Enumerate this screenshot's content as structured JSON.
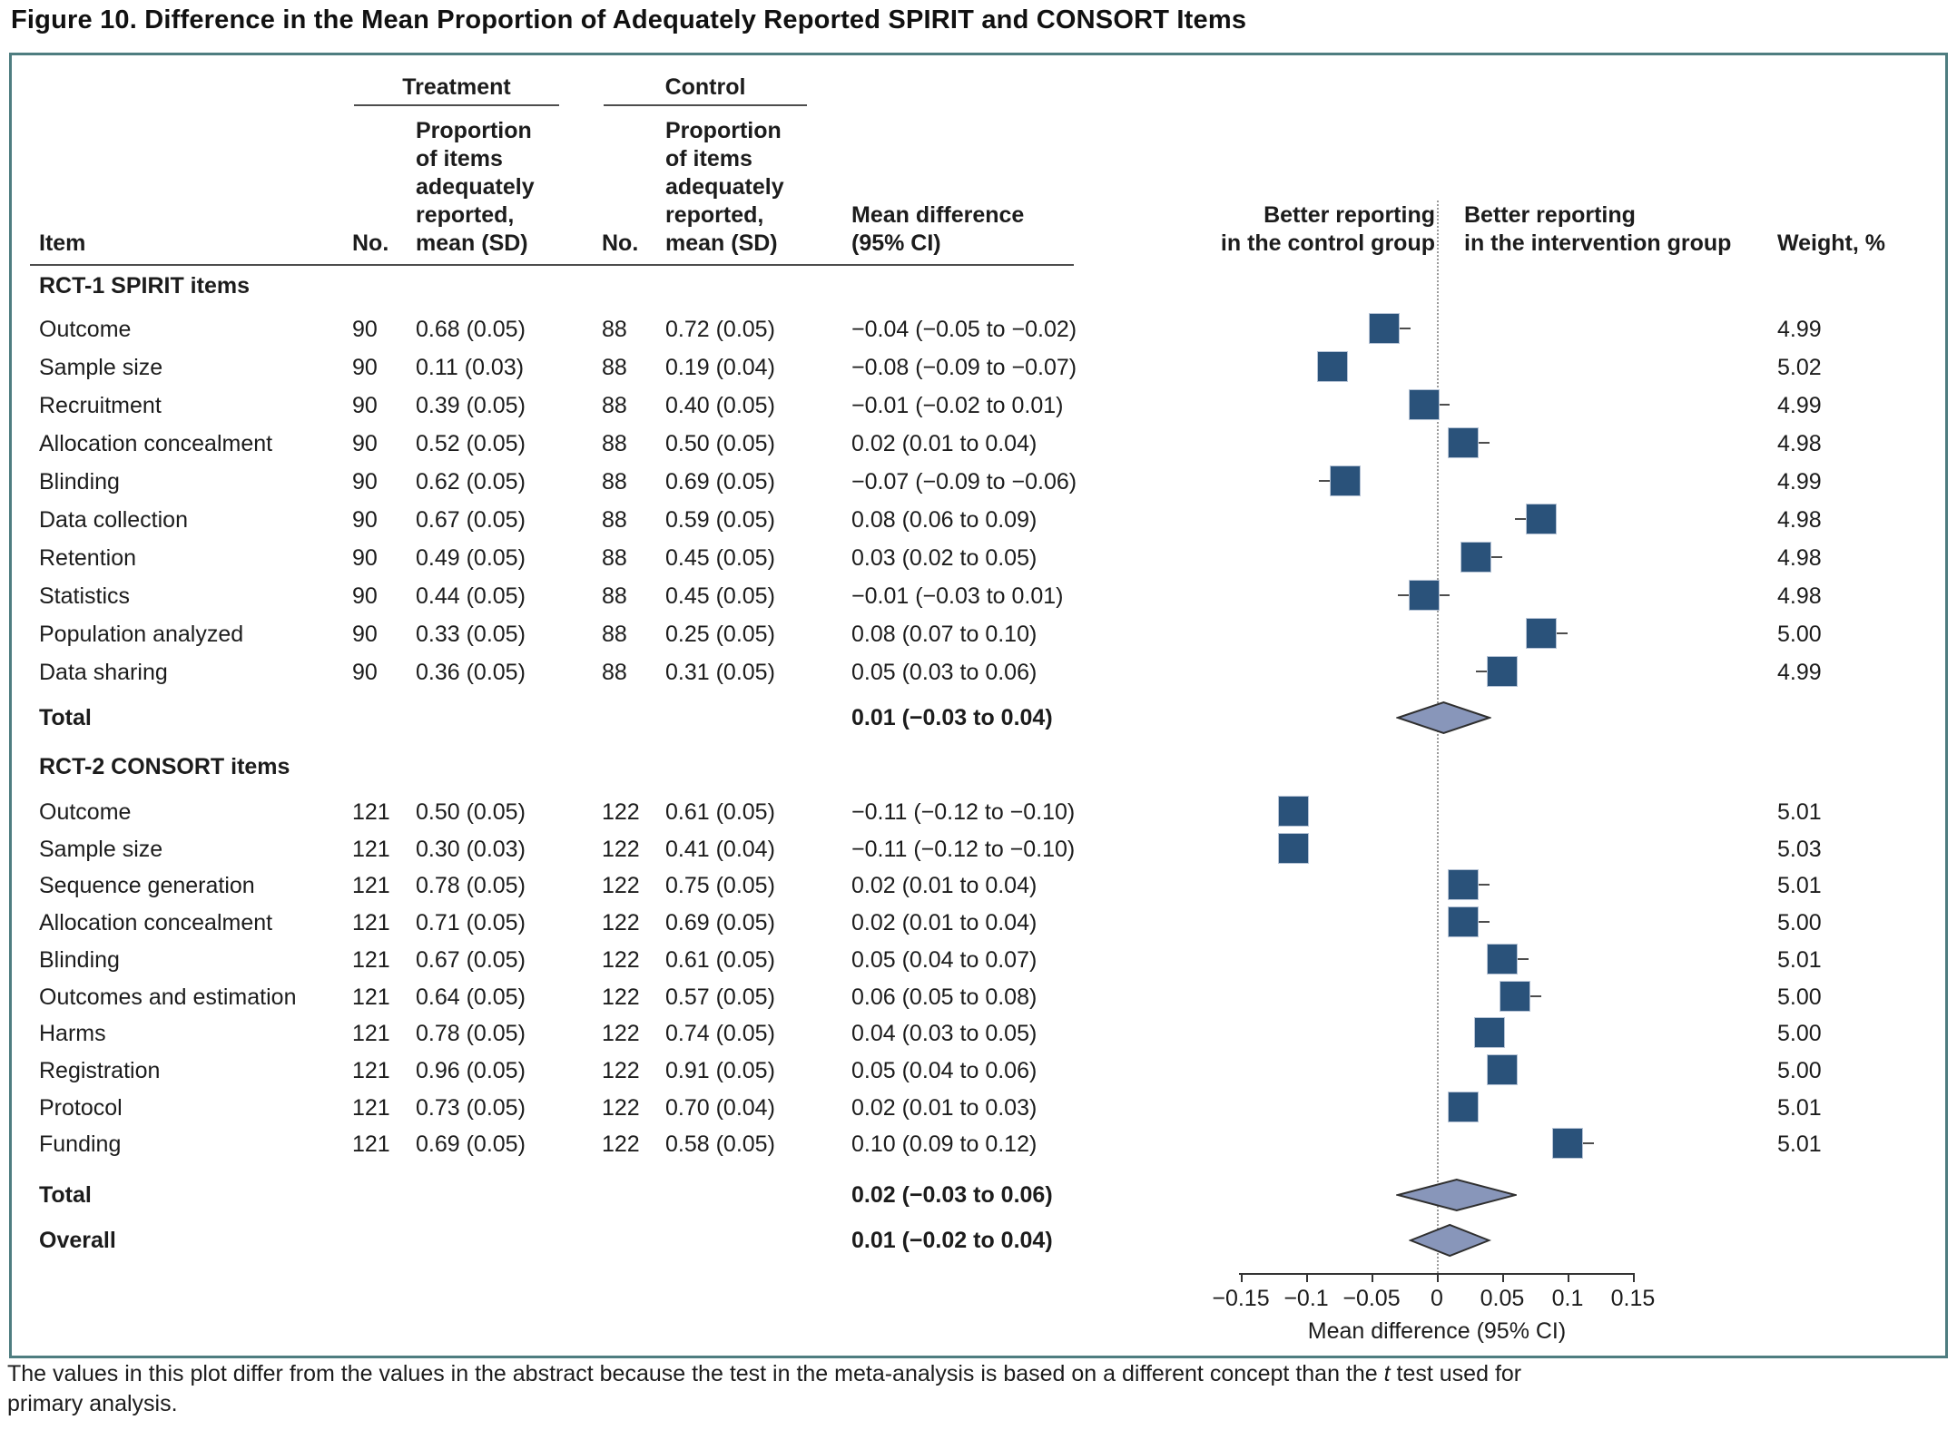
{
  "figure": {
    "title": "Figure 10. Difference in the Mean Proportion of Adequately Reported SPIRIT and CONSORT Items",
    "footnote": {
      "line1_pre": "The values in this plot differ from the values in the abstract because the test in the meta-analysis is based on a different concept than the ",
      "line1_italic": "t",
      "line1_post": " test used for",
      "line2": "primary analysis."
    }
  },
  "table_headers": {
    "treatment_group": "Treatment",
    "control_group": "Control",
    "item": "Item",
    "no": "No.",
    "proportion_block": "Proportion\nof items\nadequately\nreported,\nmean (SD)",
    "mean_difference": "Mean difference\n(95% CI)",
    "weight": "Weight, %"
  },
  "chart_data": {
    "type": "forest",
    "title": "Difference in the Mean Proportion of Adequately Reported SPIRIT and CONSORT Items",
    "xlabel": "Mean difference (95% CI)",
    "xlim": [
      -0.15,
      0.15
    ],
    "x_tick_values": [
      -0.15,
      -0.1,
      -0.05,
      0,
      0.05,
      0.1,
      0.15
    ],
    "x_ticks": [
      "−0.15",
      "−0.1",
      "−0.05",
      "0",
      "0.05",
      "0.1",
      "0.15"
    ],
    "left_region_label": "Better reporting\nin the control group",
    "right_region_label": "Better reporting\nin the intervention group",
    "marker_color": "#2a527a",
    "diamond_color": "#8896ba",
    "sections": [
      {
        "label": "RCT-1 SPIRIT items",
        "rows": [
          {
            "item": "Outcome",
            "n1": "90",
            "mean_sd1": "0.68 (0.05)",
            "n2": "88",
            "mean_sd2": "0.72 (0.05)",
            "md_text": "−0.04 (−0.05 to −0.02)",
            "md": -0.04,
            "lo": -0.05,
            "hi": -0.02,
            "weight": "4.99"
          },
          {
            "item": "Sample size",
            "n1": "90",
            "mean_sd1": "0.11 (0.03)",
            "n2": "88",
            "mean_sd2": "0.19 (0.04)",
            "md_text": "−0.08 (−0.09 to −0.07)",
            "md": -0.08,
            "lo": -0.09,
            "hi": -0.07,
            "weight": "5.02"
          },
          {
            "item": "Recruitment",
            "n1": "90",
            "mean_sd1": "0.39 (0.05)",
            "n2": "88",
            "mean_sd2": "0.40 (0.05)",
            "md_text": "−0.01 (−0.02 to 0.01)",
            "md": -0.01,
            "lo": -0.02,
            "hi": 0.01,
            "weight": "4.99"
          },
          {
            "item": "Allocation concealment",
            "n1": "90",
            "mean_sd1": "0.52 (0.05)",
            "n2": "88",
            "mean_sd2": "0.50 (0.05)",
            "md_text": "0.02 (0.01 to 0.04)",
            "md": 0.02,
            "lo": 0.01,
            "hi": 0.04,
            "weight": "4.98"
          },
          {
            "item": "Blinding",
            "n1": "90",
            "mean_sd1": "0.62 (0.05)",
            "n2": "88",
            "mean_sd2": "0.69 (0.05)",
            "md_text": "−0.07 (−0.09 to −0.06)",
            "md": -0.07,
            "lo": -0.09,
            "hi": -0.06,
            "weight": "4.99"
          },
          {
            "item": "Data collection",
            "n1": "90",
            "mean_sd1": "0.67 (0.05)",
            "n2": "88",
            "mean_sd2": "0.59 (0.05)",
            "md_text": "0.08 (0.06 to 0.09)",
            "md": 0.08,
            "lo": 0.06,
            "hi": 0.09,
            "weight": "4.98"
          },
          {
            "item": "Retention",
            "n1": "90",
            "mean_sd1": "0.49 (0.05)",
            "n2": "88",
            "mean_sd2": "0.45 (0.05)",
            "md_text": "0.03 (0.02 to 0.05)",
            "md": 0.03,
            "lo": 0.02,
            "hi": 0.05,
            "weight": "4.98"
          },
          {
            "item": "Statistics",
            "n1": "90",
            "mean_sd1": "0.44 (0.05)",
            "n2": "88",
            "mean_sd2": "0.45 (0.05)",
            "md_text": "−0.01 (−0.03 to 0.01)",
            "md": -0.01,
            "lo": -0.03,
            "hi": 0.01,
            "weight": "4.98"
          },
          {
            "item": "Population analyzed",
            "n1": "90",
            "mean_sd1": "0.33 (0.05)",
            "n2": "88",
            "mean_sd2": "0.25 (0.05)",
            "md_text": "0.08 (0.07 to 0.10)",
            "md": 0.08,
            "lo": 0.07,
            "hi": 0.1,
            "weight": "5.00"
          },
          {
            "item": "Data sharing",
            "n1": "90",
            "mean_sd1": "0.36 (0.05)",
            "n2": "88",
            "mean_sd2": "0.31 (0.05)",
            "md_text": "0.05 (0.03 to 0.06)",
            "md": 0.05,
            "lo": 0.03,
            "hi": 0.06,
            "weight": "4.99"
          }
        ],
        "total": {
          "label": "Total",
          "md_text": "0.01 (−0.03 to 0.04)",
          "md": 0.01,
          "lo": -0.03,
          "hi": 0.04
        }
      },
      {
        "label": "RCT-2 CONSORT items",
        "rows": [
          {
            "item": "Outcome",
            "n1": "121",
            "mean_sd1": "0.50 (0.05)",
            "n2": "122",
            "mean_sd2": "0.61 (0.05)",
            "md_text": "−0.11 (−0.12 to −0.10)",
            "md": -0.11,
            "lo": -0.12,
            "hi": -0.1,
            "weight": "5.01"
          },
          {
            "item": "Sample size",
            "n1": "121",
            "mean_sd1": "0.30 (0.03)",
            "n2": "122",
            "mean_sd2": "0.41 (0.04)",
            "md_text": "−0.11 (−0.12 to −0.10)",
            "md": -0.11,
            "lo": -0.12,
            "hi": -0.1,
            "weight": "5.03"
          },
          {
            "item": "Sequence generation",
            "n1": "121",
            "mean_sd1": "0.78 (0.05)",
            "n2": "122",
            "mean_sd2": "0.75 (0.05)",
            "md_text": "0.02 (0.01 to 0.04)",
            "md": 0.02,
            "lo": 0.01,
            "hi": 0.04,
            "weight": "5.01"
          },
          {
            "item": "Allocation concealment",
            "n1": "121",
            "mean_sd1": "0.71 (0.05)",
            "n2": "122",
            "mean_sd2": "0.69 (0.05)",
            "md_text": "0.02 (0.01 to 0.04)",
            "md": 0.02,
            "lo": 0.01,
            "hi": 0.04,
            "weight": "5.00"
          },
          {
            "item": "Blinding",
            "n1": "121",
            "mean_sd1": "0.67 (0.05)",
            "n2": "122",
            "mean_sd2": "0.61 (0.05)",
            "md_text": "0.05 (0.04 to 0.07)",
            "md": 0.05,
            "lo": 0.04,
            "hi": 0.07,
            "weight": "5.01"
          },
          {
            "item": "Outcomes and estimation",
            "n1": "121",
            "mean_sd1": "0.64 (0.05)",
            "n2": "122",
            "mean_sd2": "0.57 (0.05)",
            "md_text": "0.06 (0.05 to 0.08)",
            "md": 0.06,
            "lo": 0.05,
            "hi": 0.08,
            "weight": "5.00"
          },
          {
            "item": "Harms",
            "n1": "121",
            "mean_sd1": "0.78 (0.05)",
            "n2": "122",
            "mean_sd2": "0.74 (0.05)",
            "md_text": "0.04 (0.03 to 0.05)",
            "md": 0.04,
            "lo": 0.03,
            "hi": 0.05,
            "weight": "5.00"
          },
          {
            "item": "Registration",
            "n1": "121",
            "mean_sd1": "0.96 (0.05)",
            "n2": "122",
            "mean_sd2": "0.91 (0.05)",
            "md_text": "0.05 (0.04 to 0.06)",
            "md": 0.05,
            "lo": 0.04,
            "hi": 0.06,
            "weight": "5.00"
          },
          {
            "item": "Protocol",
            "n1": "121",
            "mean_sd1": "0.73 (0.05)",
            "n2": "122",
            "mean_sd2": "0.70 (0.04)",
            "md_text": "0.02 (0.01 to 0.03)",
            "md": 0.02,
            "lo": 0.01,
            "hi": 0.03,
            "weight": "5.01"
          },
          {
            "item": "Funding",
            "n1": "121",
            "mean_sd1": "0.69 (0.05)",
            "n2": "122",
            "mean_sd2": "0.58 (0.05)",
            "md_text": "0.10 (0.09 to 0.12)",
            "md": 0.1,
            "lo": 0.09,
            "hi": 0.12,
            "weight": "5.01"
          }
        ],
        "total": {
          "label": "Total",
          "md_text": "0.02 (−0.03 to 0.06)",
          "md": 0.02,
          "lo": -0.03,
          "hi": 0.06
        }
      }
    ],
    "overall": {
      "label": "Overall",
      "md_text": "0.01 (−0.02 to 0.04)",
      "md": 0.01,
      "lo": -0.02,
      "hi": 0.04
    }
  }
}
